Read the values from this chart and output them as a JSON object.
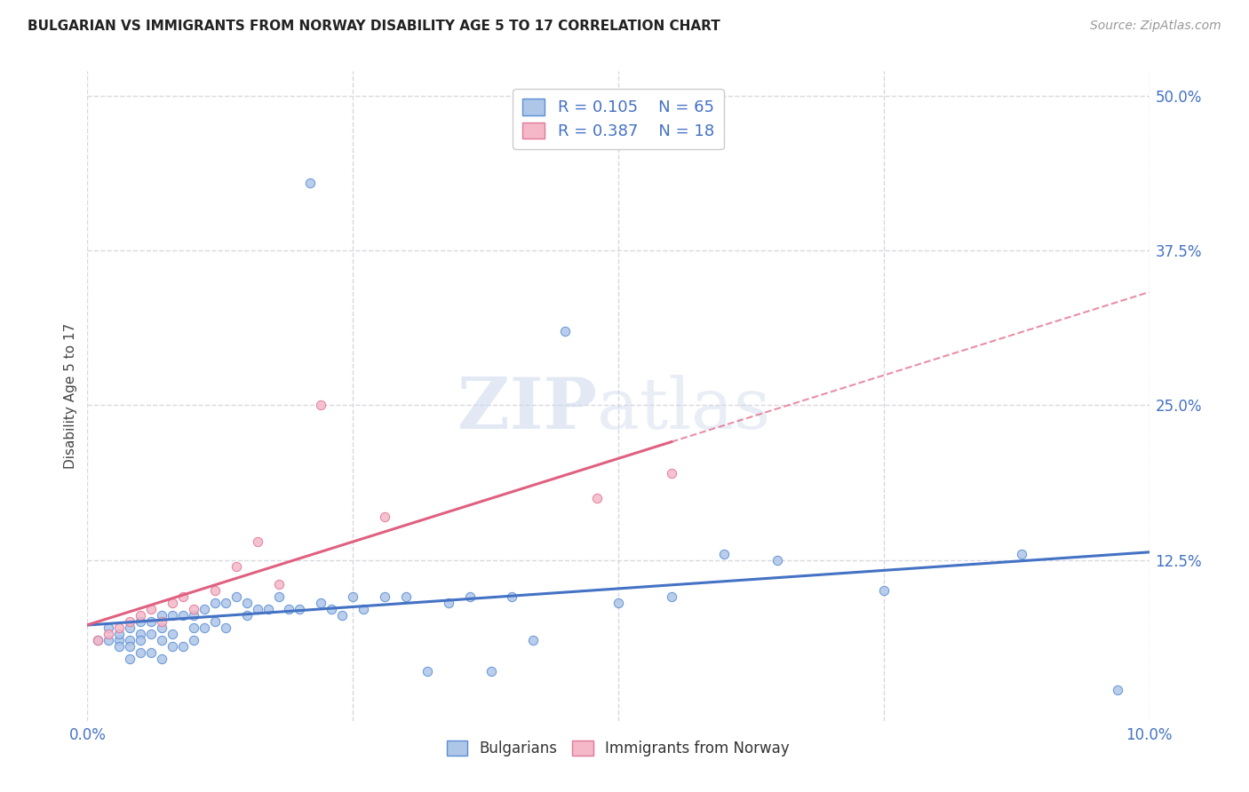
{
  "title": "BULGARIAN VS IMMIGRANTS FROM NORWAY DISABILITY AGE 5 TO 17 CORRELATION CHART",
  "source": "Source: ZipAtlas.com",
  "ylabel": "Disability Age 5 to 17",
  "xlim": [
    0.0,
    0.1
  ],
  "ylim": [
    -0.005,
    0.52
  ],
  "ytick_labels": [
    "50.0%",
    "37.5%",
    "25.0%",
    "12.5%"
  ],
  "ytick_values": [
    0.5,
    0.375,
    0.25,
    0.125
  ],
  "xtick_values": [
    0.0,
    0.025,
    0.05,
    0.075,
    0.1
  ],
  "xtick_labels": [
    "0.0%",
    "",
    "",
    "",
    "10.0%"
  ],
  "blue_R": "0.105",
  "blue_N": "65",
  "pink_R": "0.387",
  "pink_N": "18",
  "blue_color": "#aec6e8",
  "pink_color": "#f4b8c8",
  "blue_edge_color": "#5b8fd4",
  "pink_edge_color": "#e07898",
  "blue_line_color": "#4472c4",
  "pink_line_color": "#e06080",
  "background_color": "#ffffff",
  "grid_color": "#d8d8e0",
  "text_color": "#4472c4",
  "title_color": "#222222",
  "source_color": "#999999",
  "ylabel_color": "#444444",
  "blue_scatter_x": [
    0.001,
    0.002,
    0.002,
    0.003,
    0.003,
    0.003,
    0.004,
    0.004,
    0.004,
    0.004,
    0.005,
    0.005,
    0.005,
    0.005,
    0.006,
    0.006,
    0.006,
    0.007,
    0.007,
    0.007,
    0.007,
    0.008,
    0.008,
    0.008,
    0.009,
    0.009,
    0.01,
    0.01,
    0.01,
    0.011,
    0.011,
    0.012,
    0.012,
    0.013,
    0.013,
    0.014,
    0.015,
    0.015,
    0.016,
    0.017,
    0.018,
    0.019,
    0.02,
    0.021,
    0.022,
    0.023,
    0.024,
    0.025,
    0.026,
    0.028,
    0.03,
    0.032,
    0.034,
    0.036,
    0.038,
    0.04,
    0.042,
    0.045,
    0.05,
    0.055,
    0.06,
    0.065,
    0.075,
    0.088,
    0.097
  ],
  "blue_scatter_y": [
    0.06,
    0.06,
    0.07,
    0.06,
    0.065,
    0.055,
    0.07,
    0.06,
    0.055,
    0.045,
    0.075,
    0.065,
    0.06,
    0.05,
    0.075,
    0.065,
    0.05,
    0.08,
    0.07,
    0.06,
    0.045,
    0.08,
    0.065,
    0.055,
    0.08,
    0.055,
    0.08,
    0.07,
    0.06,
    0.085,
    0.07,
    0.09,
    0.075,
    0.09,
    0.07,
    0.095,
    0.09,
    0.08,
    0.085,
    0.085,
    0.095,
    0.085,
    0.085,
    0.43,
    0.09,
    0.085,
    0.08,
    0.095,
    0.085,
    0.095,
    0.095,
    0.035,
    0.09,
    0.095,
    0.035,
    0.095,
    0.06,
    0.31,
    0.09,
    0.095,
    0.13,
    0.125,
    0.1,
    0.13,
    0.02
  ],
  "pink_scatter_x": [
    0.001,
    0.002,
    0.003,
    0.004,
    0.005,
    0.006,
    0.007,
    0.008,
    0.009,
    0.01,
    0.012,
    0.014,
    0.016,
    0.018,
    0.022,
    0.028,
    0.048,
    0.055
  ],
  "pink_scatter_y": [
    0.06,
    0.065,
    0.07,
    0.075,
    0.08,
    0.085,
    0.075,
    0.09,
    0.095,
    0.085,
    0.1,
    0.12,
    0.14,
    0.105,
    0.25,
    0.16,
    0.175,
    0.195
  ],
  "legend_label_blue": "Bulgarians",
  "legend_label_pink": "Immigrants from Norway",
  "pink_line_solid_end": 0.055
}
